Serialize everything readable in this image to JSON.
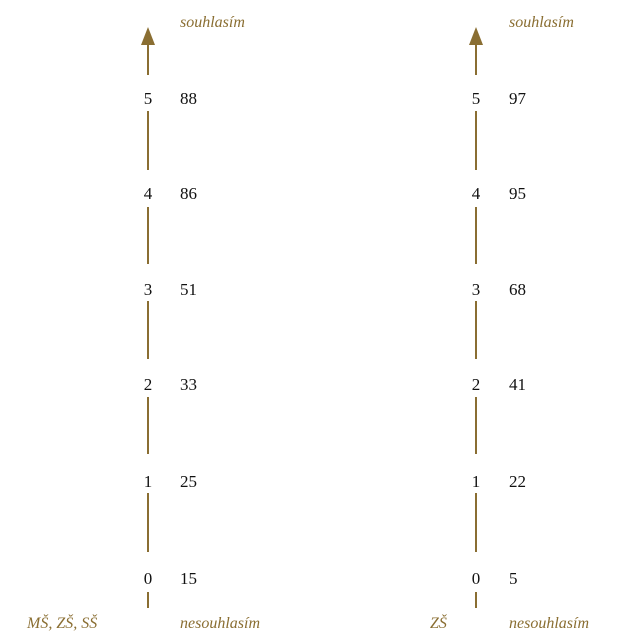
{
  "scales": [
    {
      "group_label": "MŠ, ZŠ, SŠ",
      "top_label": "souhlasím",
      "bottom_label": "nesouhlasím",
      "levels": [
        {
          "num": "0",
          "value": "15"
        },
        {
          "num": "1",
          "value": "25"
        },
        {
          "num": "2",
          "value": "33"
        },
        {
          "num": "3",
          "value": "51"
        },
        {
          "num": "4",
          "value": "86"
        },
        {
          "num": "5",
          "value": "88"
        }
      ]
    },
    {
      "group_label": "ZŠ",
      "top_label": "souhlasím",
      "bottom_label": "nesouhlasím",
      "levels": [
        {
          "num": "0",
          "value": "5"
        },
        {
          "num": "1",
          "value": "22"
        },
        {
          "num": "2",
          "value": "41"
        },
        {
          "num": "3",
          "value": "68"
        },
        {
          "num": "4",
          "value": "95"
        },
        {
          "num": "5",
          "value": "97"
        }
      ]
    }
  ],
  "colors": {
    "axis": "#8a6e32",
    "text": "#111111"
  },
  "icons": {
    "arrow": "arrow-up-icon"
  }
}
